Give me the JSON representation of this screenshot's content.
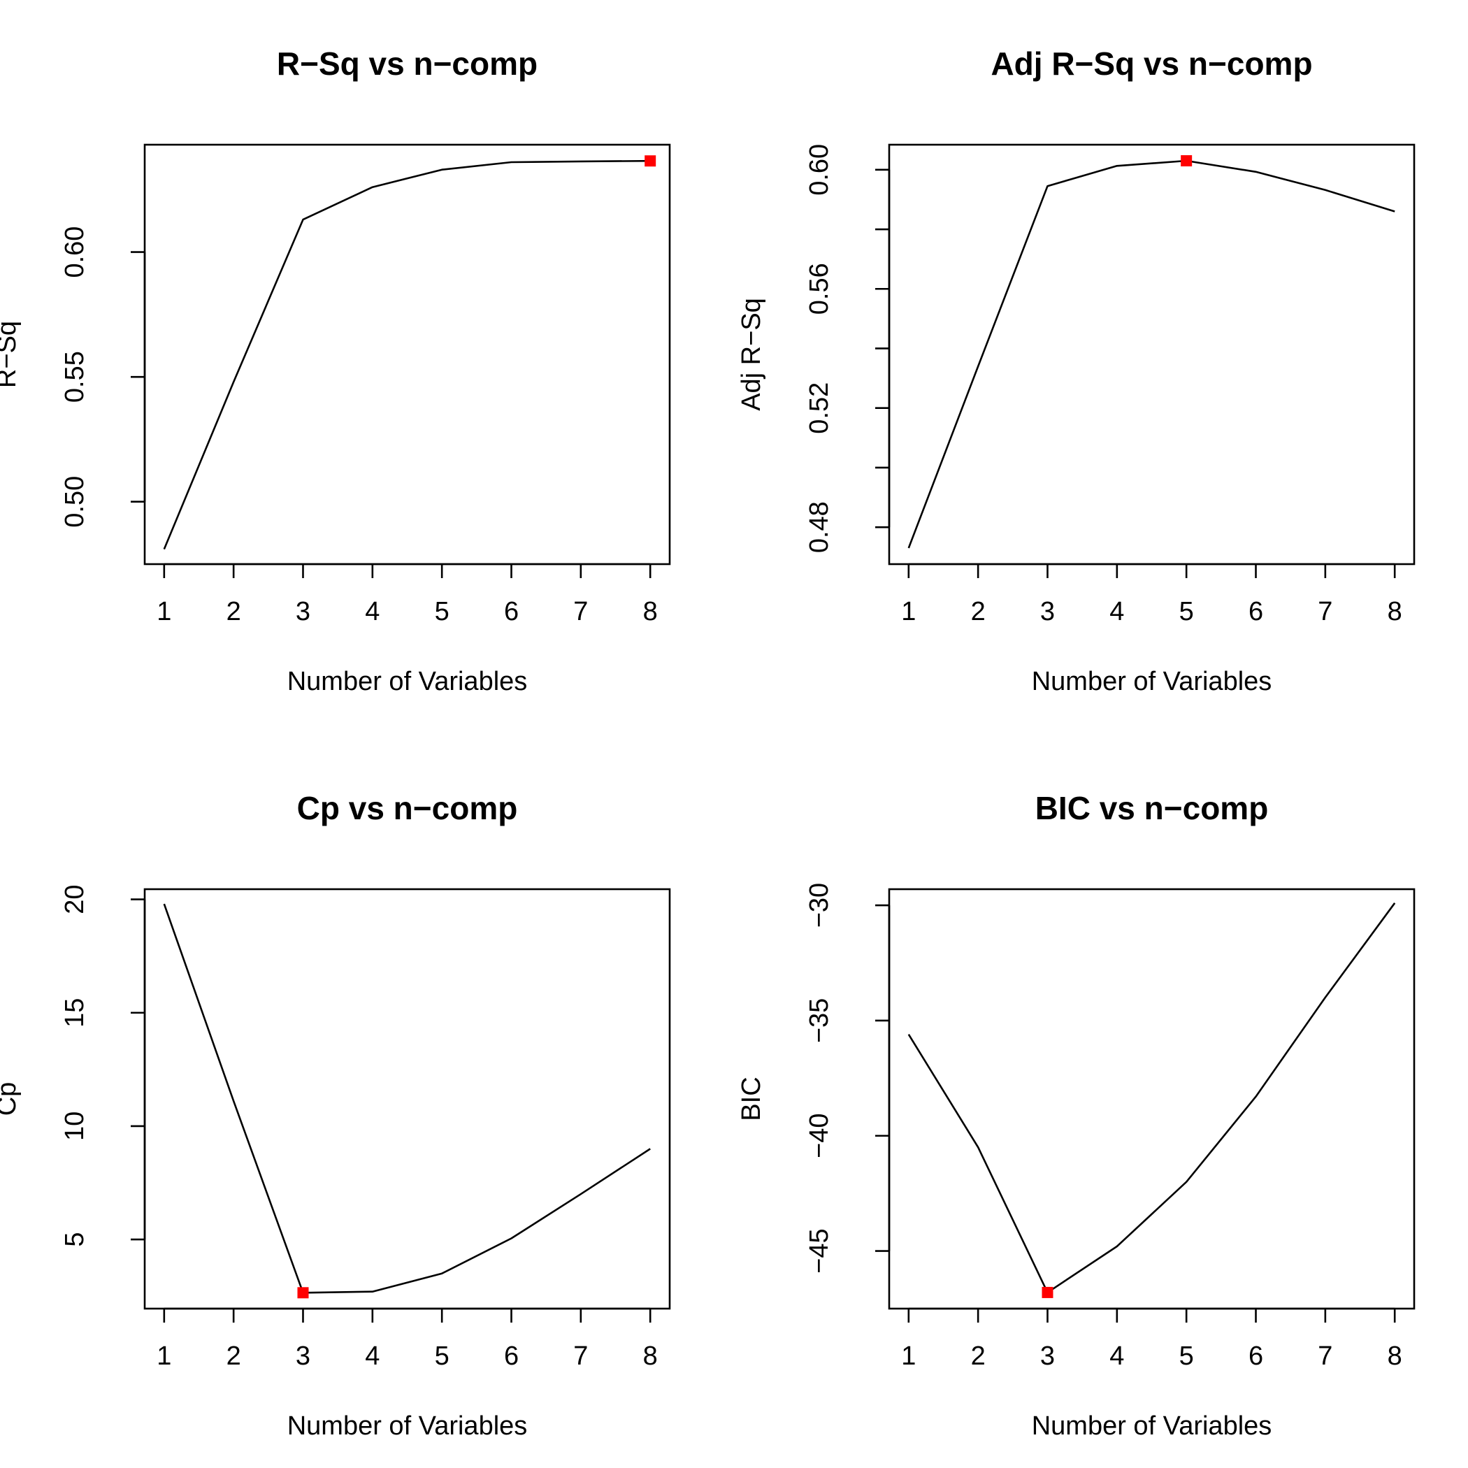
{
  "chart_data": [
    {
      "type": "line",
      "title": "R−Sq vs n−comp",
      "xlabel": "Number of Variables",
      "ylabel": "R−Sq",
      "x": [
        1,
        2,
        3,
        4,
        5,
        6,
        7,
        8
      ],
      "xticks": [
        "1",
        "2",
        "3",
        "4",
        "5",
        "6",
        "7",
        "8"
      ],
      "xlim": [
        0.72,
        8.28
      ],
      "y": [
        0.481,
        0.548,
        0.613,
        0.626,
        0.633,
        0.636,
        0.6363,
        0.6365
      ],
      "ylim": [
        0.475,
        0.643
      ],
      "yticks": [
        0.5,
        0.55,
        0.6
      ],
      "ytick_labels": [
        "0.50",
        "0.55",
        "0.60"
      ],
      "highlight": {
        "x": 8,
        "y": 0.6365,
        "color": "#ff0000"
      }
    },
    {
      "type": "line",
      "title": "Adj R−Sq vs n−comp",
      "xlabel": "Number of Variables",
      "ylabel": "Adj R−Sq",
      "x": [
        1,
        2,
        3,
        4,
        5,
        6,
        7,
        8
      ],
      "xticks": [
        "1",
        "2",
        "3",
        "4",
        "5",
        "6",
        "7",
        "8"
      ],
      "xlim": [
        0.72,
        8.28
      ],
      "y": [
        0.473,
        0.534,
        0.5945,
        0.6013,
        0.603,
        0.5993,
        0.5932,
        0.586
      ],
      "ylim": [
        0.4676,
        0.6084
      ],
      "yticks": [
        0.48,
        0.5,
        0.52,
        0.54,
        0.56,
        0.58,
        0.6
      ],
      "ytick_labels": [
        "0.48",
        "",
        "0.52",
        "",
        "0.56",
        "",
        "0.60"
      ],
      "highlight": {
        "x": 5,
        "y": 0.603,
        "color": "#ff0000"
      }
    },
    {
      "type": "line",
      "title": "Cp vs n−comp",
      "xlabel": "Number of Variables",
      "ylabel": "Cp",
      "x": [
        1,
        2,
        3,
        4,
        5,
        6,
        7,
        8
      ],
      "xticks": [
        "1",
        "2",
        "3",
        "4",
        "5",
        "6",
        "7",
        "8"
      ],
      "xlim": [
        0.72,
        8.28
      ],
      "y": [
        19.8,
        11.1,
        2.65,
        2.7,
        3.5,
        5.05,
        7.0,
        9.0
      ],
      "ylim": [
        1.95,
        20.45
      ],
      "yticks": [
        5,
        10,
        15,
        20
      ],
      "ytick_labels": [
        "5",
        "10",
        "15",
        "20"
      ],
      "highlight": {
        "x": 3,
        "y": 2.65,
        "color": "#ff0000"
      }
    },
    {
      "type": "line",
      "title": "BIC vs n−comp",
      "xlabel": "Number of Variables",
      "ylabel": "BIC",
      "x": [
        1,
        2,
        3,
        4,
        5,
        6,
        7,
        8
      ],
      "xticks": [
        "1",
        "2",
        "3",
        "4",
        "5",
        "6",
        "7",
        "8"
      ],
      "xlim": [
        0.72,
        8.28
      ],
      "y": [
        -35.6,
        -40.5,
        -46.8,
        -44.8,
        -42.0,
        -38.3,
        -34.0,
        -29.9
      ],
      "ylim": [
        -47.5,
        -29.3
      ],
      "yticks": [
        -45,
        -40,
        -35,
        -30
      ],
      "ytick_labels": [
        "−45",
        "−40",
        "−35",
        "−30"
      ],
      "highlight": {
        "x": 3,
        "y": -46.8,
        "color": "#ff0000"
      }
    }
  ]
}
